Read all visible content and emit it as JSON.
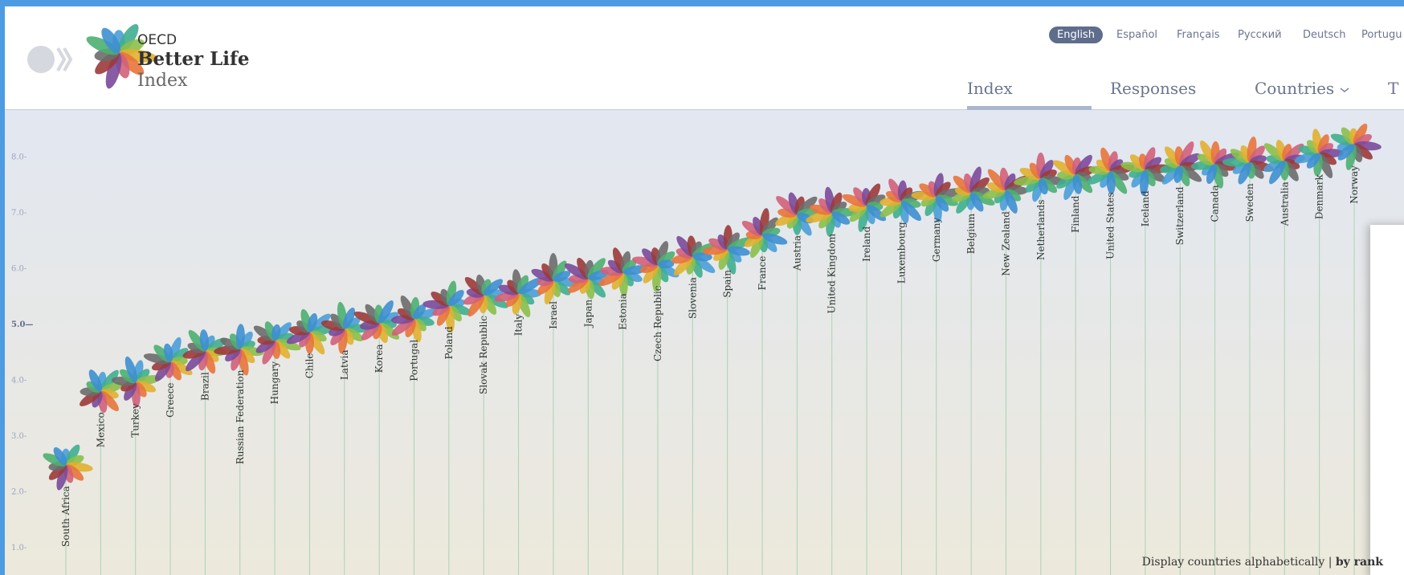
{
  "header": {
    "logo": {
      "line1": "OECD",
      "line2": "Better Life",
      "line3": "Index"
    },
    "languages": [
      "English",
      "Español",
      "Français",
      "Русский",
      "Deutsch",
      "Portugu"
    ],
    "nav": [
      "Index",
      "Responses",
      "Countries",
      "T"
    ]
  },
  "chart_data": {
    "type": "flower",
    "categories": [
      "South Africa",
      "Mexico",
      "Turkey",
      "Greece",
      "Brazil",
      "Russian Federation",
      "Hungary",
      "Chile",
      "Latvia",
      "Korea",
      "Portugal",
      "Poland",
      "Slovak Republic",
      "Italy",
      "Israel",
      "Japan",
      "Estonia",
      "Czech Republic",
      "Slovenia",
      "Spain",
      "France",
      "Austria",
      "United Kingdom",
      "Ireland",
      "Luxembourg",
      "Germany",
      "Belgium",
      "New Zealand",
      "Netherlands",
      "Finland",
      "United States",
      "Iceland",
      "Switzerland",
      "Canada",
      "Sweden",
      "Australia",
      "Denmark",
      "Norway"
    ],
    "values": [
      2.47,
      3.79,
      3.95,
      4.32,
      4.51,
      4.55,
      4.7,
      4.85,
      4.91,
      5.01,
      5.09,
      5.33,
      5.52,
      5.55,
      5.78,
      5.81,
      5.92,
      6.06,
      6.21,
      6.34,
      6.59,
      6.96,
      6.99,
      7.12,
      7.2,
      7.28,
      7.35,
      7.39,
      7.6,
      7.67,
      7.73,
      7.76,
      7.83,
      7.86,
      7.89,
      7.92,
      8.05,
      8.21
    ],
    "ylim": [
      0.5,
      8.7
    ],
    "yticks": [
      {
        "value": 1,
        "label": "1.0-"
      },
      {
        "value": 2,
        "label": "2.0-"
      },
      {
        "value": 3,
        "label": "3.0-"
      },
      {
        "value": 4,
        "label": "4.0-"
      },
      {
        "value": 5,
        "label": "5.0—"
      },
      {
        "value": 6,
        "label": "6.0-"
      },
      {
        "value": 7,
        "label": "7.0-"
      },
      {
        "value": 8,
        "label": "8.0-"
      }
    ],
    "petal_colors": [
      "#4a9fd8",
      "#3fae8f",
      "#8bbf4a",
      "#e0b030",
      "#e8743b",
      "#d0607a",
      "#7a4a9a",
      "#9b3a3a",
      "#6b6b6b",
      "#4caf70",
      "#3d8fd0"
    ]
  },
  "sort": {
    "prefix": "Display countries",
    "options": [
      "alphabetically",
      "by rank"
    ],
    "separator": "|"
  }
}
